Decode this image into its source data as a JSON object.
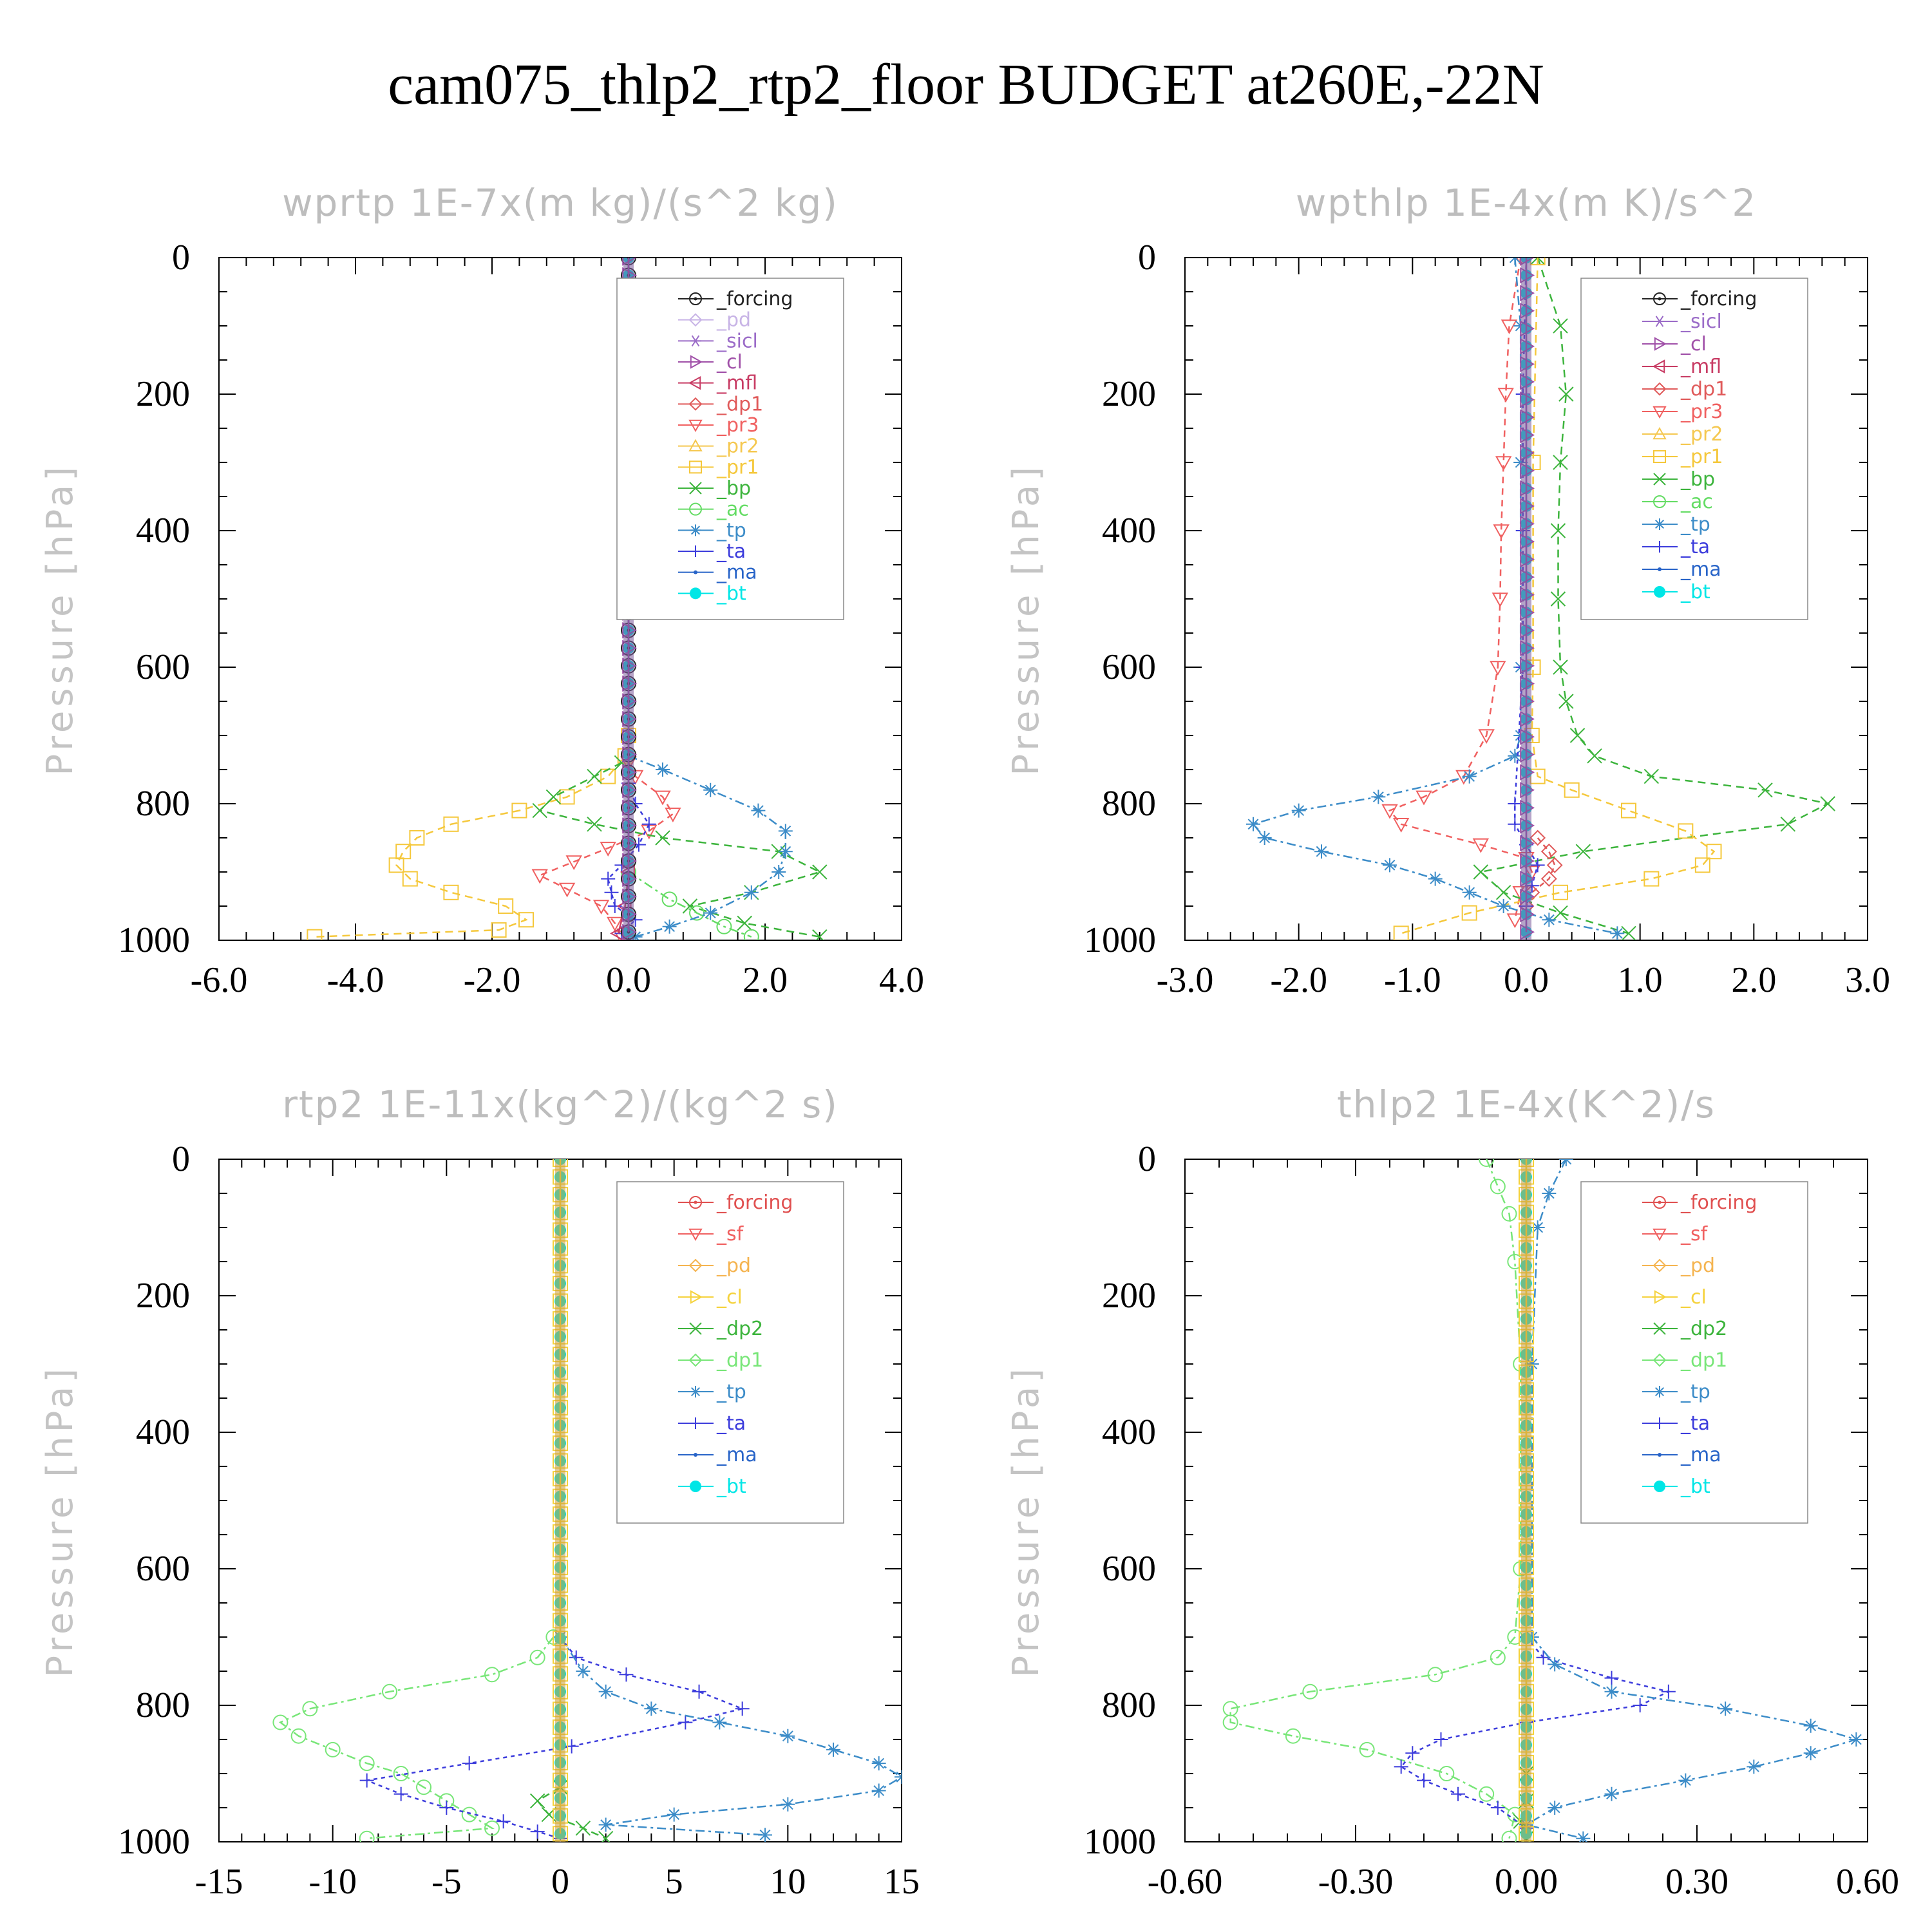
{
  "title": "cam075_thlp2_rtp2_floor  BUDGET at260E,-22N",
  "colors": {
    "forcing_black": "#222222",
    "forcing_red": "#e05050",
    "pd_lav": "#c8b4e6",
    "sicl": "#9b6cc8",
    "cl_purple": "#a050a8",
    "cl_yellow": "#f5d23c",
    "mfl": "#c83c64",
    "dp1_red": "#e05a5a",
    "pr3": "#f06060",
    "sf": "#f06060",
    "pd_or": "#f5b450",
    "pr2": "#f5c850",
    "pr1": "#f5c83c",
    "bp": "#3cb43c",
    "dp2": "#3cb43c",
    "ac": "#64dc64",
    "dp1_green": "#78e678",
    "tp": "#3c8cc8",
    "ta": "#3c3cdc",
    "ma": "#2864c8",
    "bt": "#00e6e6"
  },
  "chart_data": [
    {
      "type": "line",
      "title": "wprtp  1E-7x(m kg)/(s^2 kg)",
      "ylabel": "Pressure [hPa]",
      "xlim": [
        -6,
        4
      ],
      "ylim": [
        1000,
        0
      ],
      "xticks": [
        "-6.0",
        "-4.0",
        "-2.0",
        "0.0",
        "2.0",
        "4.0"
      ],
      "xtick_values": [
        -6,
        -4,
        -2,
        0,
        2,
        4
      ],
      "yticks": [
        "0",
        "200",
        "400",
        "600",
        "800",
        "1000"
      ],
      "legend": [
        "_forcing",
        "_pd",
        "_sicl",
        "_cl",
        "_mfl",
        "_dp1",
        "_pr3",
        "_pr2",
        "_pr1",
        "_bp",
        "_ac",
        "_tp",
        "_ta",
        "_ma",
        "_bt"
      ],
      "series": [
        {
          "name": "_pr1",
          "color": "pr1",
          "marker": "square",
          "dash": "12,8",
          "y": [
            700,
            730,
            760,
            790,
            810,
            830,
            850,
            870,
            890,
            910,
            930,
            950,
            970,
            985,
            995
          ],
          "x": [
            0,
            -0.05,
            -0.3,
            -0.9,
            -1.6,
            -2.6,
            -3.1,
            -3.3,
            -3.4,
            -3.2,
            -2.6,
            -1.8,
            -1.5,
            -1.9,
            -4.6
          ]
        },
        {
          "name": "_pr3",
          "color": "pr3",
          "marker": "tri_down",
          "dash": "10,8",
          "y": [
            740,
            760,
            790,
            815,
            840,
            865,
            885,
            905,
            925,
            950,
            975,
            995
          ],
          "x": [
            0,
            0.1,
            0.5,
            0.65,
            0.3,
            -0.3,
            -0.8,
            -1.3,
            -0.9,
            -0.4,
            -0.2,
            -0.1
          ]
        },
        {
          "name": "_bp",
          "color": "bp",
          "marker": "x",
          "dash": "12,8",
          "y": [
            740,
            760,
            790,
            810,
            830,
            850,
            870,
            900,
            930,
            950,
            975,
            995
          ],
          "x": [
            -0.1,
            -0.5,
            -1.1,
            -1.3,
            -0.5,
            0.5,
            2.2,
            2.8,
            1.8,
            0.9,
            1.7,
            2.8
          ]
        },
        {
          "name": "_ac",
          "color": "ac",
          "marker": "circle",
          "dash": "14,6,4,6",
          "y": [
            900,
            940,
            960,
            980,
            995
          ],
          "x": [
            0,
            0.6,
            1.0,
            1.4,
            1.8
          ]
        },
        {
          "name": "_tp",
          "color": "tp",
          "marker": "asterisk",
          "dash": "14,6,4,6",
          "y": [
            730,
            750,
            780,
            810,
            840,
            870,
            900,
            930,
            960,
            980,
            995
          ],
          "x": [
            0,
            0.5,
            1.2,
            1.9,
            2.3,
            2.3,
            2.2,
            1.8,
            1.2,
            0.6,
            0.1
          ]
        },
        {
          "name": "_ta",
          "color": "ta",
          "marker": "plus",
          "dash": "6,6",
          "y": [
            770,
            800,
            830,
            860,
            890,
            910,
            930,
            950,
            970,
            990
          ],
          "x": [
            0,
            0.1,
            0.3,
            0.15,
            -0.1,
            -0.3,
            -0.25,
            -0.2,
            0.1,
            -0.1
          ]
        },
        {
          "name": "_mfl",
          "color": "mfl",
          "marker": "tri_left",
          "dash": "",
          "y": [
            900,
            950,
            990
          ],
          "x": [
            0,
            -0.05,
            -0.15
          ]
        },
        {
          "name": "_bt",
          "color": "bt",
          "marker": "dot",
          "dash": "",
          "y": [
            0,
            1000
          ],
          "x": [
            0,
            0
          ]
        },
        {
          "name": "_forcing",
          "color": "forcing_black",
          "marker": "circle_dot",
          "dash": "",
          "y": [
            0,
            1000
          ],
          "x": [
            0,
            0
          ]
        },
        {
          "name": "_cl",
          "color": "cl_purple",
          "marker": "tri_right",
          "dash": "",
          "y": [
            0,
            1000
          ],
          "x": [
            0,
            0
          ]
        }
      ]
    },
    {
      "type": "line",
      "title": "wpthlp  1E-4x(m K)/s^2",
      "ylabel": "Pressure [hPa]",
      "xlim": [
        -3,
        3
      ],
      "ylim": [
        1000,
        0
      ],
      "xticks": [
        "-3.0",
        "-2.0",
        "-1.0",
        "0.0",
        "1.0",
        "2.0",
        "3.0"
      ],
      "xtick_values": [
        -3,
        -2,
        -1,
        0,
        1,
        2,
        3
      ],
      "yticks": [
        "0",
        "200",
        "400",
        "600",
        "800",
        "1000"
      ],
      "legend": [
        "_forcing",
        "_sicl",
        "_cl",
        "_mfl",
        "_dp1",
        "_pr3",
        "_pr2",
        "_pr1",
        "_bp",
        "_ac",
        "_tp",
        "_ta",
        "_ma",
        "_bt"
      ],
      "series": [
        {
          "name": "_pr3",
          "color": "pr3",
          "marker": "tri_down",
          "dash": "10,8",
          "y": [
            0,
            100,
            200,
            300,
            400,
            500,
            600,
            700,
            760,
            790,
            810,
            830,
            860,
            880,
            900,
            930,
            970
          ],
          "x": [
            -0.05,
            -0.15,
            -0.18,
            -0.2,
            -0.22,
            -0.23,
            -0.25,
            -0.35,
            -0.55,
            -0.9,
            -1.2,
            -1.1,
            -0.4,
            0,
            0.05,
            -0.05,
            -0.1
          ]
        },
        {
          "name": "_bp",
          "color": "bp",
          "marker": "x",
          "dash": "12,8",
          "y": [
            0,
            100,
            200,
            300,
            400,
            500,
            600,
            650,
            700,
            730,
            760,
            780,
            800,
            830,
            870,
            900,
            930,
            960,
            990
          ],
          "x": [
            0.1,
            0.3,
            0.35,
            0.3,
            0.28,
            0.28,
            0.3,
            0.35,
            0.45,
            0.6,
            1.1,
            2.1,
            2.65,
            2.3,
            0.5,
            -0.4,
            -0.2,
            0.3,
            0.9
          ]
        },
        {
          "name": "_pr1",
          "color": "pr1",
          "marker": "square",
          "dash": "12,8",
          "y": [
            0,
            300,
            600,
            700,
            760,
            780,
            810,
            840,
            870,
            890,
            910,
            930,
            960,
            990
          ],
          "x": [
            0.1,
            0.06,
            0.06,
            0.05,
            0.1,
            0.4,
            0.9,
            1.4,
            1.65,
            1.55,
            1.1,
            0.3,
            -0.5,
            -1.1
          ]
        },
        {
          "name": "_tp",
          "color": "tp",
          "marker": "asterisk",
          "dash": "14,6,4,6",
          "y": [
            0,
            100,
            300,
            600,
            700,
            730,
            760,
            790,
            810,
            830,
            850,
            870,
            890,
            910,
            930,
            950,
            970,
            990
          ],
          "x": [
            -0.1,
            -0.05,
            -0.05,
            -0.05,
            -0.05,
            -0.1,
            -0.5,
            -1.3,
            -2.0,
            -2.4,
            -2.3,
            -1.8,
            -1.2,
            -0.8,
            -0.5,
            -0.2,
            0.2,
            0.8
          ]
        },
        {
          "name": "_dp1",
          "color": "dp1_red",
          "marker": "diamond",
          "dash": "8,6",
          "y": [
            850,
            870,
            890,
            910,
            930,
            950
          ],
          "x": [
            0.1,
            0.2,
            0.25,
            0.2,
            0.05,
            0
          ]
        },
        {
          "name": "_ta",
          "color": "ta",
          "marker": "plus",
          "dash": "6,6",
          "y": [
            0,
            200,
            400,
            600,
            800,
            830,
            860,
            890,
            920,
            950
          ],
          "x": [
            0,
            -0.03,
            -0.03,
            -0.03,
            -0.1,
            -0.1,
            0,
            0.1,
            0.05,
            0
          ]
        },
        {
          "name": "_bt",
          "color": "bt",
          "marker": "dot",
          "dash": "",
          "y": [
            0,
            1000
          ],
          "x": [
            0,
            0
          ]
        },
        {
          "name": "_cl",
          "color": "cl_purple",
          "marker": "tri_right",
          "dash": "",
          "y": [
            0,
            1000
          ],
          "x": [
            0,
            0
          ]
        }
      ]
    },
    {
      "type": "line",
      "title": "rtp2  1E-11x(kg^2)/(kg^2 s)",
      "ylabel": "Pressure [hPa]",
      "xlim": [
        -15,
        15
      ],
      "ylim": [
        1000,
        0
      ],
      "xticks": [
        "-15",
        "-10",
        "-5",
        "0",
        "5",
        "10",
        "15"
      ],
      "xtick_values": [
        -15,
        -10,
        -5,
        0,
        5,
        10,
        15
      ],
      "yticks": [
        "0",
        "200",
        "400",
        "600",
        "800",
        "1000"
      ],
      "legend": [
        "_forcing",
        "_sf",
        "_pd",
        "_cl",
        "_dp2",
        "_dp1",
        "_tp",
        "_ta",
        "_ma",
        "_bt"
      ],
      "series": [
        {
          "name": "_dp1",
          "color": "dp1_green",
          "marker": "circle",
          "dash": "14,6,4,6",
          "y": [
            700,
            730,
            755,
            780,
            805,
            825,
            845,
            865,
            885,
            900,
            920,
            940,
            960,
            980,
            995
          ],
          "x": [
            -0.3,
            -1,
            -3,
            -7.5,
            -11,
            -12.3,
            -11.5,
            -10,
            -8.5,
            -7,
            -6,
            -5,
            -4,
            -3,
            -8.5
          ]
        },
        {
          "name": "_ta",
          "color": "ta",
          "marker": "plus",
          "dash": "6,6",
          "y": [
            700,
            730,
            755,
            780,
            805,
            825,
            860,
            885,
            910,
            930,
            950,
            970,
            985,
            995
          ],
          "x": [
            0,
            0.7,
            2.9,
            6.1,
            8,
            5.5,
            0.5,
            -4,
            -8.5,
            -7,
            -5,
            -2.5,
            -1,
            0
          ]
        },
        {
          "name": "_tp",
          "color": "tp",
          "marker": "asterisk",
          "dash": "14,6,4,6",
          "y": [
            700,
            750,
            780,
            805,
            825,
            845,
            865,
            885,
            905,
            925,
            945,
            960,
            975,
            990
          ],
          "x": [
            0,
            1,
            2,
            4,
            7,
            10,
            12,
            14,
            15,
            14,
            10,
            5,
            2,
            9
          ]
        },
        {
          "name": "_dp2",
          "color": "dp2",
          "marker": "x",
          "dash": "12,8",
          "y": [
            920,
            940,
            960,
            980,
            995
          ],
          "x": [
            0,
            -1,
            -0.5,
            1,
            2
          ]
        },
        {
          "name": "_bt",
          "color": "bt",
          "marker": "dot",
          "dash": "",
          "y": [
            0,
            1000
          ],
          "x": [
            0,
            0
          ]
        },
        {
          "name": "_cl",
          "color": "cl_yellow",
          "marker": "square",
          "dash": "",
          "y": [
            0,
            1000
          ],
          "x": [
            0,
            0
          ]
        }
      ]
    },
    {
      "type": "line",
      "title": "thlp2  1E-4x(K^2)/s",
      "ylabel": "Pressure [hPa]",
      "xlim": [
        -0.6,
        0.6
      ],
      "ylim": [
        1000,
        0
      ],
      "xticks": [
        "-0.60",
        "-0.30",
        "0.00",
        "0.30",
        "0.60"
      ],
      "xtick_values": [
        -0.6,
        -0.3,
        0,
        0.3,
        0.6
      ],
      "yticks": [
        "0",
        "200",
        "400",
        "600",
        "800",
        "1000"
      ],
      "legend": [
        "_forcing",
        "_sf",
        "_pd",
        "_cl",
        "_dp2",
        "_dp1",
        "_tp",
        "_ta",
        "_ma",
        "_bt"
      ],
      "series": [
        {
          "name": "_dp1",
          "color": "dp1_green",
          "marker": "circle",
          "dash": "14,6,4,6",
          "y": [
            0,
            40,
            80,
            150,
            300,
            600,
            700,
            730,
            755,
            780,
            805,
            825,
            845,
            865,
            900,
            930,
            960,
            995
          ],
          "x": [
            -0.07,
            -0.05,
            -0.03,
            -0.02,
            -0.01,
            -0.01,
            -0.02,
            -0.05,
            -0.16,
            -0.38,
            -0.52,
            -0.52,
            -0.41,
            -0.28,
            -0.14,
            -0.07,
            -0.02,
            -0.03
          ]
        },
        {
          "name": "_ta",
          "color": "ta",
          "marker": "plus",
          "dash": "6,6",
          "y": [
            700,
            730,
            760,
            780,
            800,
            825,
            850,
            870,
            890,
            910,
            930,
            950,
            980
          ],
          "x": [
            0,
            0.03,
            0.15,
            0.25,
            0.2,
            0,
            -0.15,
            -0.2,
            -0.22,
            -0.18,
            -0.12,
            -0.05,
            0
          ]
        },
        {
          "name": "_tp",
          "color": "tp",
          "marker": "asterisk",
          "dash": "14,6,4,6",
          "y": [
            0,
            50,
            100,
            300,
            700,
            740,
            780,
            805,
            830,
            850,
            870,
            890,
            910,
            930,
            950,
            975,
            995
          ],
          "x": [
            0.07,
            0.04,
            0.02,
            0.01,
            0.01,
            0.05,
            0.15,
            0.35,
            0.5,
            0.58,
            0.5,
            0.4,
            0.28,
            0.15,
            0.05,
            0,
            0.1
          ]
        },
        {
          "name": "_dp2",
          "color": "dp2",
          "marker": "x",
          "dash": "12,8",
          "y": [
            900,
            940,
            970,
            995
          ],
          "x": [
            0,
            0,
            -0.01,
            0
          ]
        },
        {
          "name": "_bt",
          "color": "bt",
          "marker": "dot",
          "dash": "",
          "y": [
            0,
            1000
          ],
          "x": [
            0,
            0
          ]
        },
        {
          "name": "_cl",
          "color": "cl_yellow",
          "marker": "square",
          "dash": "",
          "y": [
            0,
            1000
          ],
          "x": [
            0,
            0
          ]
        }
      ]
    }
  ],
  "legend_colors": {
    "_forcing": "forcing_black",
    "_pd": "pd_lav",
    "_sicl": "sicl",
    "_cl": "cl_purple",
    "_mfl": "mfl",
    "_dp1": "dp1_red",
    "_pr3": "pr3",
    "_pr2": "pr2",
    "_pr1": "pr1",
    "_bp": "bp",
    "_ac": "ac",
    "_tp": "tp",
    "_ta": "ta",
    "_ma": "ma",
    "_bt": "bt"
  },
  "legend_colors_var": {
    "_forcing": "forcing_red",
    "_sf": "sf",
    "_pd": "pd_or",
    "_cl": "cl_yellow",
    "_dp2": "dp2",
    "_dp1": "dp1_green",
    "_tp": "tp",
    "_ta": "ta",
    "_ma": "ma",
    "_bt": "bt"
  },
  "legend_markers": {
    "_forcing": "circle_dot",
    "_pd": "diamond",
    "_sicl": "star",
    "_cl": "tri_right",
    "_mfl": "tri_left",
    "_dp1": "diamond",
    "_pr3": "tri_down",
    "_pr2": "tri_up",
    "_pr1": "square",
    "_bp": "x",
    "_ac": "circle",
    "_tp": "asterisk",
    "_ta": "plus",
    "_ma": "dot_small",
    "_bt": "dot",
    "_sf": "tri_down",
    "_dp2": "x"
  }
}
